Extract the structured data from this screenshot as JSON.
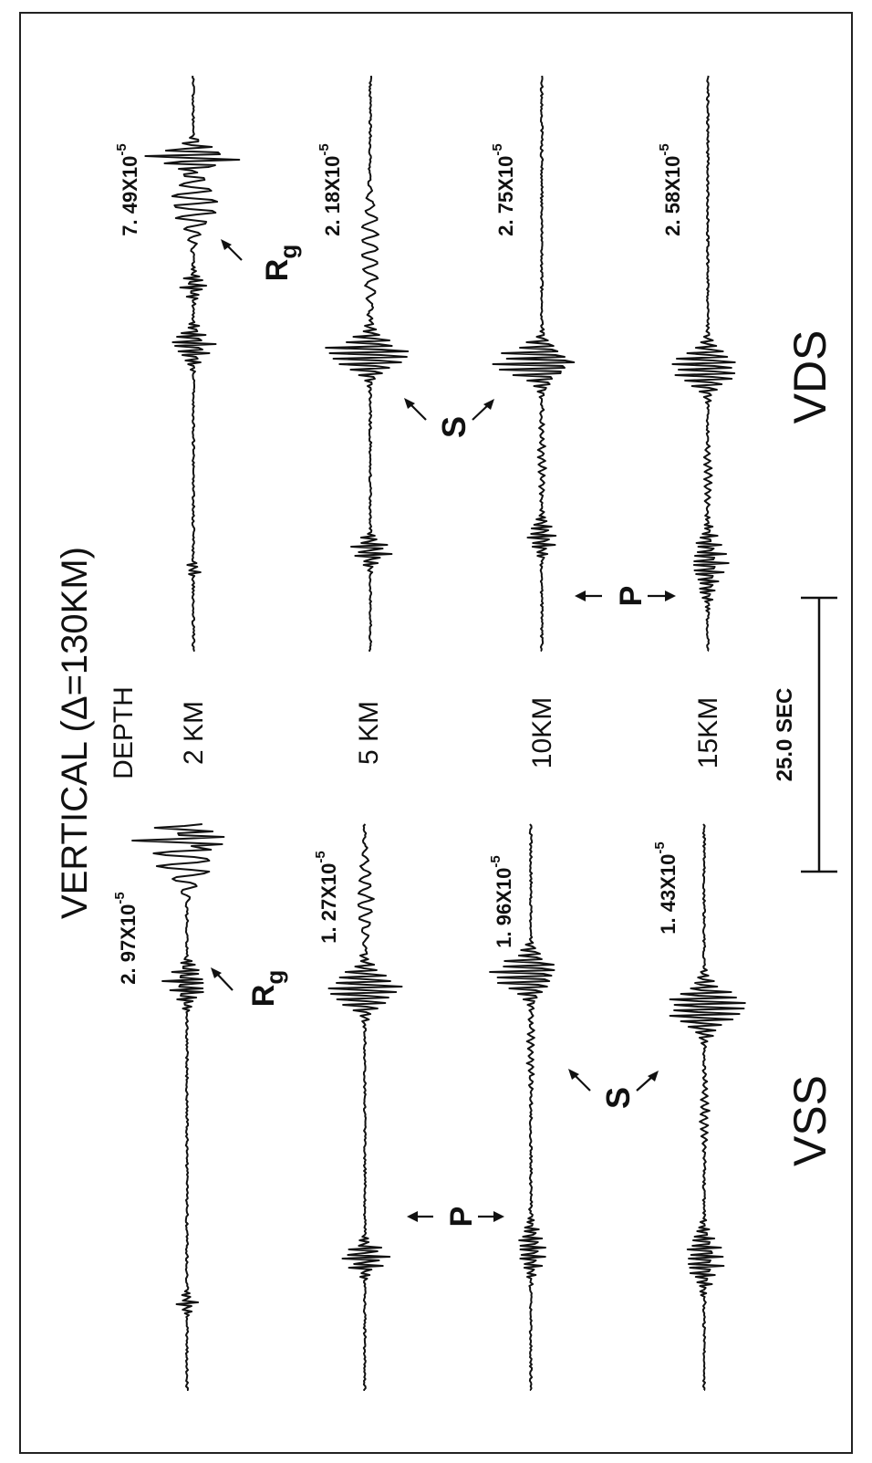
{
  "figure": {
    "title": "VERTICAL  (Δ=130KM)",
    "depth_header": "DEPTH",
    "time_scale_label": "25.0 SEC",
    "vss_label": "VSS",
    "vds_label": "VDS",
    "phase_labels": {
      "p": "P",
      "s": "S",
      "rg_base": "R",
      "rg_sub": "g"
    },
    "depths": [
      "2 KM",
      "5 KM",
      "10KM",
      "15KM"
    ],
    "amplitudes": {
      "vss": [
        {
          "mantissa": "2. 97X10",
          "exponent": "-5"
        },
        {
          "mantissa": "1. 27X10",
          "exponent": "-5"
        },
        {
          "mantissa": "1. 96X10",
          "exponent": "-5"
        },
        {
          "mantissa": "1. 43X10",
          "exponent": "-5"
        }
      ],
      "vds": [
        {
          "mantissa": "7. 49X10",
          "exponent": "-5"
        },
        {
          "mantissa": "2. 18X10",
          "exponent": "-5"
        },
        {
          "mantissa": "2. 75X10",
          "exponent": "-5"
        },
        {
          "mantissa": "2. 58X10",
          "exponent": "-5"
        }
      ]
    }
  }
}
